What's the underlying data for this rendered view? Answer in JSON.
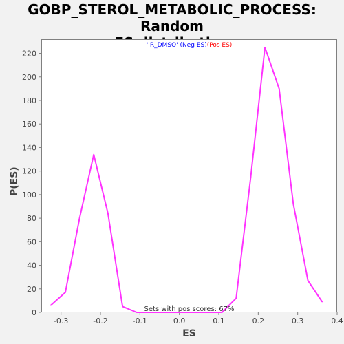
{
  "chart_data": {
    "type": "line",
    "title": "GOBP_STEROL_METABOLIC_PROCESS: Random\nES distribution",
    "xlabel": "ES",
    "ylabel": "P(ES)",
    "xlim": [
      -0.35,
      0.4
    ],
    "ylim": [
      0,
      232
    ],
    "x_ticks": [
      "-0.3",
      "-0.2",
      "-0.1",
      "0.0",
      "0.1",
      "0.2",
      "0.3",
      "0.4"
    ],
    "x_tick_values": [
      -0.3,
      -0.2,
      -0.1,
      0.0,
      0.1,
      0.2,
      0.3,
      0.4
    ],
    "y_ticks": [
      "0",
      "20",
      "40",
      "60",
      "80",
      "100",
      "120",
      "140",
      "160",
      "180",
      "200",
      "220"
    ],
    "y_tick_values": [
      0,
      20,
      40,
      60,
      80,
      100,
      120,
      140,
      160,
      180,
      200,
      220
    ],
    "grid": false,
    "legend": {
      "dataset": "'IR_DMSO'",
      "neg": "(Neg ES)",
      "pos": "(Pos ES)",
      "neg_color": "#0000ff",
      "pos_color": "#ff0000"
    },
    "series": [
      {
        "color": "#ff33ff",
        "x": [
          -0.326,
          -0.289,
          -0.253,
          -0.217,
          -0.181,
          -0.144,
          -0.108,
          -0.072,
          -0.036,
          0.0,
          0.036,
          0.072,
          0.108,
          0.144,
          0.181,
          0.217,
          0.253,
          0.289,
          0.326,
          0.362
        ],
        "y": [
          6,
          17,
          80,
          134,
          84,
          5,
          0,
          0,
          0,
          0,
          0,
          0,
          0,
          12,
          115,
          225,
          190,
          92,
          27,
          9
        ]
      }
    ],
    "annotation": "Sets with pos scores: 67%"
  }
}
